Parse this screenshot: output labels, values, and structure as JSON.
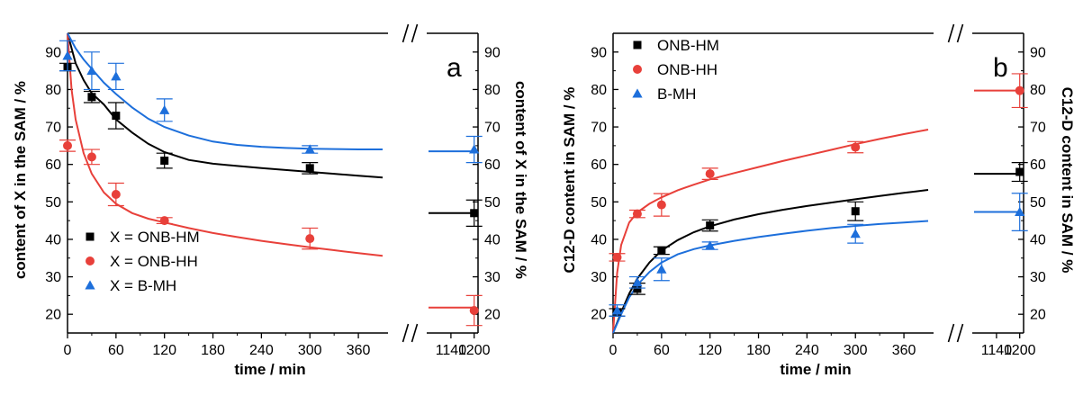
{
  "chart_data": [
    {
      "panel": "a",
      "type": "scatter",
      "panel_label": "a",
      "xlabel": "time / min",
      "ylabel_left": "content of X in the SAM / %",
      "ylabel_right": "content of X in the SAM / %",
      "x_ticks_left": [
        "0",
        "60",
        "120",
        "180",
        "240",
        "300",
        "360"
      ],
      "x_ticks_right": [
        "1140",
        "1200"
      ],
      "y_ticks": [
        "20",
        "30",
        "40",
        "50",
        "60",
        "70",
        "80",
        "90"
      ],
      "xlim_left": [
        0,
        390
      ],
      "xlim_right": [
        1110,
        1210
      ],
      "ylim": [
        15,
        95
      ],
      "axis_break": true,
      "legend_position": "bottom-left",
      "series": [
        {
          "name": "X = ONB-HM",
          "color": "#000000",
          "marker": "square",
          "x": [
            0,
            30,
            60,
            120,
            300,
            1200
          ],
          "y": [
            86,
            78,
            73,
            61,
            59,
            47
          ],
          "err": [
            1,
            1.5,
            3.5,
            2,
            1.5,
            3.5
          ],
          "fit_x": [
            0,
            10,
            20,
            30,
            45,
            60,
            80,
            100,
            120,
            150,
            180,
            210,
            240,
            270,
            300,
            330,
            360,
            390
          ],
          "fit_y": [
            95,
            87,
            82.5,
            79,
            76,
            72,
            68.5,
            65.5,
            63.3,
            61.2,
            60.2,
            59.6,
            59,
            58.5,
            58,
            57.5,
            57,
            56.5
          ],
          "fit_right": 47
        },
        {
          "name": "X = ONB-HH",
          "color": "#e8403a",
          "marker": "circle",
          "x": [
            0,
            30,
            60,
            120,
            300,
            1200
          ],
          "y": [
            65,
            62,
            52,
            45,
            40.2,
            21
          ],
          "err": [
            1.5,
            2,
            3,
            0.8,
            2.8,
            4
          ],
          "fit_x": [
            0,
            5,
            10,
            20,
            30,
            45,
            60,
            80,
            100,
            120,
            150,
            180,
            210,
            240,
            270,
            300,
            330,
            360,
            390
          ],
          "fit_y": [
            95,
            80,
            72,
            63,
            57.5,
            52.5,
            49.5,
            47,
            45.5,
            44.5,
            43,
            41.7,
            40.6,
            39.6,
            38.7,
            37.9,
            37.1,
            36.3,
            35.6
          ],
          "fit_right": 21.8
        },
        {
          "name": "X = B-MH",
          "color": "#1d6fdb",
          "marker": "triangle",
          "x": [
            0,
            30,
            60,
            120,
            300,
            1200
          ],
          "y": [
            89,
            85,
            83.5,
            74.5,
            64,
            64
          ],
          "err": [
            4,
            5,
            3.5,
            3,
            1,
            3.5
          ],
          "fit_x": [
            0,
            10,
            20,
            30,
            45,
            60,
            80,
            100,
            120,
            150,
            180,
            210,
            240,
            270,
            300,
            330,
            360,
            390
          ],
          "fit_y": [
            95,
            91,
            88,
            85.5,
            81.8,
            78.8,
            75.2,
            72.2,
            70,
            67.7,
            66.1,
            65.2,
            64.7,
            64.4,
            64.2,
            64.1,
            64,
            64
          ],
          "fit_right": 63.5
        }
      ]
    },
    {
      "panel": "b",
      "type": "scatter",
      "panel_label": "b",
      "xlabel": "time / min",
      "ylabel_left": "C12-D content in SAM / %",
      "ylabel_right": "C12-D content in SAM / %",
      "x_ticks_left": [
        "0",
        "60",
        "120",
        "180",
        "240",
        "300",
        "360"
      ],
      "x_ticks_right": [
        "1140",
        "1200"
      ],
      "y_ticks": [
        "20",
        "30",
        "40",
        "50",
        "60",
        "70",
        "80",
        "90"
      ],
      "xlim_left": [
        0,
        390
      ],
      "xlim_right": [
        1110,
        1210
      ],
      "ylim": [
        15,
        95
      ],
      "axis_break": true,
      "legend_position": "top-left",
      "series": [
        {
          "name": "ONB-HM",
          "color": "#000000",
          "marker": "square",
          "x": [
            5,
            30,
            60,
            120,
            300,
            1200
          ],
          "y": [
            20.5,
            26.8,
            37,
            43.7,
            47.5,
            58
          ],
          "err": [
            1,
            1.5,
            1,
            1.5,
            2.5,
            2.5
          ],
          "fit_x": [
            0,
            10,
            20,
            30,
            45,
            60,
            80,
            100,
            120,
            150,
            180,
            210,
            240,
            270,
            300,
            330,
            360,
            390
          ],
          "fit_y": [
            15,
            20.5,
            25.5,
            29.5,
            33.8,
            37,
            39.8,
            41.9,
            43.5,
            45.3,
            46.7,
            47.9,
            48.9,
            49.8,
            50.7,
            51.6,
            52.4,
            53.2
          ],
          "fit_right": 57.5
        },
        {
          "name": "ONB-HH",
          "color": "#e8403a",
          "marker": "circle",
          "x": [
            5,
            30,
            60,
            120,
            300,
            1200
          ],
          "y": [
            35.2,
            46.8,
            49.2,
            57.5,
            64.6,
            79.7
          ],
          "err": [
            1,
            1,
            3,
            1.5,
            1.5,
            4.5
          ],
          "fit_x": [
            0,
            5,
            10,
            20,
            30,
            45,
            60,
            80,
            100,
            120,
            150,
            180,
            210,
            240,
            270,
            300,
            330,
            360,
            390
          ],
          "fit_y": [
            15,
            31,
            38.5,
            44.5,
            47.2,
            49.5,
            51.2,
            53.1,
            54.6,
            56,
            57.7,
            59.3,
            60.9,
            62.4,
            63.9,
            65.4,
            66.8,
            68.1,
            69.3
          ],
          "fit_right": 79.7
        },
        {
          "name": "B-MH",
          "color": "#1d6fdb",
          "marker": "triangle",
          "x": [
            5,
            30,
            60,
            120,
            300,
            1200
          ],
          "y": [
            21,
            28.5,
            32,
            38.3,
            41.5,
            47.3
          ],
          "err": [
            1.5,
            1.5,
            3,
            1,
            2.5,
            5
          ],
          "fit_x": [
            0,
            10,
            20,
            30,
            45,
            60,
            80,
            100,
            120,
            150,
            180,
            210,
            240,
            270,
            300,
            330,
            360,
            390
          ],
          "fit_y": [
            15,
            20,
            24.5,
            27.8,
            31.3,
            33.8,
            36,
            37.4,
            38.4,
            39.6,
            40.6,
            41.5,
            42.3,
            43,
            43.6,
            44.1,
            44.5,
            44.9
          ],
          "fit_right": 47.3
        }
      ]
    }
  ]
}
